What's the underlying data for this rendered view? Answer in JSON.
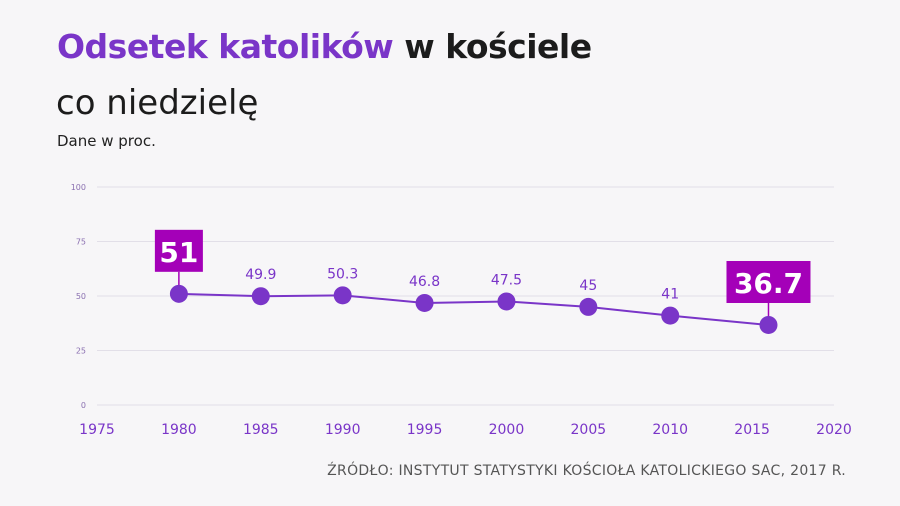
{
  "title": {
    "accent": "Odsetek katolików",
    "rest": " w kościele",
    "line2": "co niedzielę"
  },
  "subtitle": "Dane w proc.",
  "source": "ŹRÓDŁO: INSTYTUT STATYSTYKI KOŚCIOŁA KATOLICKIEGO SAC, 2017 R.",
  "colors": {
    "line": "#7a35c8",
    "highlight": "#a400b8",
    "label": "#7a35c8",
    "grid": "#e2dfe8",
    "ytick": "#8a6fb0"
  },
  "chart_data": {
    "type": "line",
    "title": "Odsetek katolików w kościele co niedzielę",
    "subtitle": "Dane w proc.",
    "xlabel": "",
    "ylabel": "",
    "xlim": [
      1975,
      2020
    ],
    "ylim": [
      0,
      100
    ],
    "xticks": [
      1975,
      1980,
      1985,
      1990,
      1995,
      2000,
      2005,
      2010,
      2015,
      2020
    ],
    "yticks": [
      0,
      25,
      50,
      75,
      100
    ],
    "grid": true,
    "series": [
      {
        "name": "",
        "x": [
          1980,
          1985,
          1990,
          1995,
          2000,
          2005,
          2010,
          2016
        ],
        "values": [
          51,
          49.9,
          50.3,
          46.8,
          47.5,
          45,
          41,
          36.7
        ],
        "labels": [
          "51",
          "49.9",
          "50.3",
          "46.8",
          "47.5",
          "45",
          "41",
          "36.7"
        ],
        "highlighted": [
          true,
          false,
          false,
          false,
          false,
          false,
          false,
          true
        ]
      }
    ]
  }
}
